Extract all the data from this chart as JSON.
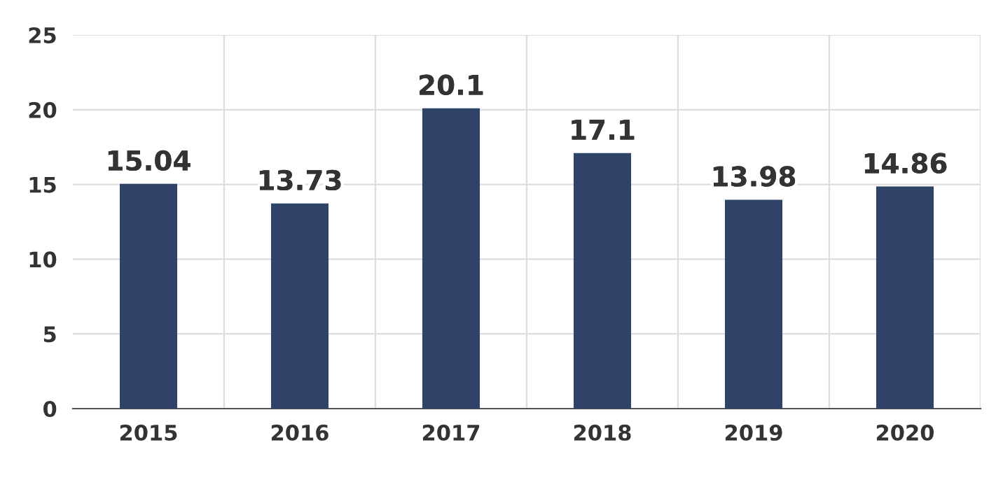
{
  "chart_data": {
    "type": "bar",
    "categories": [
      "2015",
      "2016",
      "2017",
      "2018",
      "2019",
      "2020"
    ],
    "values": [
      15.04,
      13.73,
      20.1,
      17.1,
      13.98,
      14.86
    ],
    "color": "#2f4368",
    "ylim": [
      0,
      25
    ],
    "yticks": [
      0,
      5,
      10,
      15,
      20,
      25
    ],
    "grid": true,
    "data_labels": true
  }
}
